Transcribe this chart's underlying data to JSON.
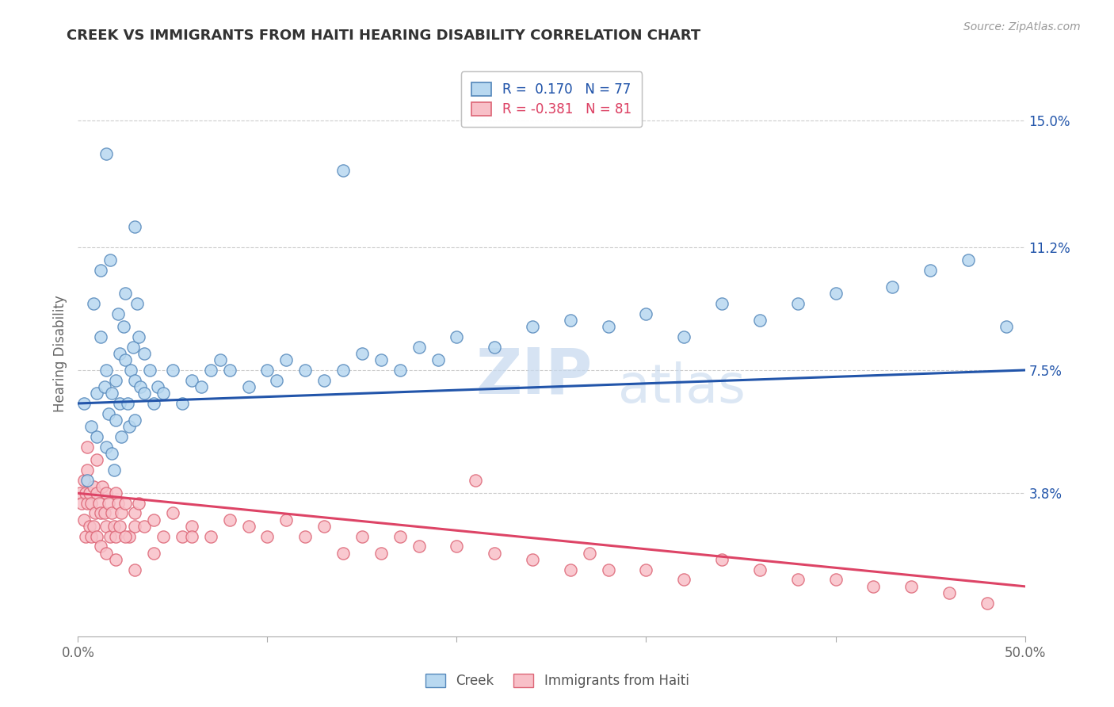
{
  "title": "CREEK VS IMMIGRANTS FROM HAITI HEARING DISABILITY CORRELATION CHART",
  "source": "Source: ZipAtlas.com",
  "ylabel": "Hearing Disability",
  "xlim": [
    0.0,
    50.0
  ],
  "ylim": [
    -0.5,
    16.5
  ],
  "xticks": [
    0.0,
    10.0,
    20.0,
    30.0,
    40.0,
    50.0
  ],
  "xticklabels": [
    "0.0%",
    "",
    "",
    "",
    "",
    "50.0%"
  ],
  "yticks_right": [
    3.8,
    7.5,
    11.2,
    15.0
  ],
  "ytick_labels_right": [
    "3.8%",
    "7.5%",
    "11.2%",
    "15.0%"
  ],
  "creek_color": "#b8d8f0",
  "creek_edge_color": "#5588bb",
  "haiti_color": "#f8c0c8",
  "haiti_edge_color": "#dd6677",
  "creek_line_color": "#2255aa",
  "haiti_line_color": "#dd4466",
  "creek_R": 0.17,
  "creek_N": 77,
  "haiti_R": -0.381,
  "haiti_N": 81,
  "watermark_zip": "ZIP",
  "watermark_atlas": "atlas",
  "grid_color": "#cccccc",
  "background_color": "#ffffff",
  "creek_scatter_x": [
    0.3,
    0.5,
    0.7,
    0.8,
    1.0,
    1.0,
    1.2,
    1.2,
    1.4,
    1.5,
    1.5,
    1.6,
    1.7,
    1.8,
    1.8,
    1.9,
    2.0,
    2.0,
    2.1,
    2.2,
    2.2,
    2.3,
    2.4,
    2.5,
    2.5,
    2.6,
    2.7,
    2.8,
    2.9,
    3.0,
    3.0,
    3.1,
    3.2,
    3.3,
    3.5,
    3.5,
    3.8,
    4.0,
    4.2,
    4.5,
    5.0,
    5.5,
    6.0,
    6.5,
    7.0,
    7.5,
    8.0,
    9.0,
    10.0,
    10.5,
    11.0,
    12.0,
    13.0,
    14.0,
    15.0,
    16.0,
    17.0,
    18.0,
    19.0,
    20.0,
    22.0,
    24.0,
    26.0,
    28.0,
    30.0,
    32.0,
    34.0,
    36.0,
    38.0,
    40.0,
    43.0,
    45.0,
    47.0,
    49.0,
    14.0,
    3.0,
    1.5
  ],
  "creek_scatter_y": [
    6.5,
    4.2,
    5.8,
    9.5,
    5.5,
    6.8,
    8.5,
    10.5,
    7.0,
    5.2,
    7.5,
    6.2,
    10.8,
    6.8,
    5.0,
    4.5,
    7.2,
    6.0,
    9.2,
    8.0,
    6.5,
    5.5,
    8.8,
    7.8,
    9.8,
    6.5,
    5.8,
    7.5,
    8.2,
    6.0,
    7.2,
    9.5,
    8.5,
    7.0,
    6.8,
    8.0,
    7.5,
    6.5,
    7.0,
    6.8,
    7.5,
    6.5,
    7.2,
    7.0,
    7.5,
    7.8,
    7.5,
    7.0,
    7.5,
    7.2,
    7.8,
    7.5,
    7.2,
    7.5,
    8.0,
    7.8,
    7.5,
    8.2,
    7.8,
    8.5,
    8.2,
    8.8,
    9.0,
    8.8,
    9.2,
    8.5,
    9.5,
    9.0,
    9.5,
    9.8,
    10.0,
    10.5,
    10.8,
    8.8,
    13.5,
    11.8,
    14.0
  ],
  "haiti_scatter_x": [
    0.1,
    0.2,
    0.3,
    0.3,
    0.4,
    0.4,
    0.5,
    0.5,
    0.6,
    0.6,
    0.7,
    0.7,
    0.8,
    0.8,
    0.9,
    1.0,
    1.0,
    1.1,
    1.2,
    1.2,
    1.3,
    1.4,
    1.5,
    1.5,
    1.6,
    1.7,
    1.8,
    1.9,
    2.0,
    2.0,
    2.1,
    2.2,
    2.3,
    2.5,
    2.7,
    3.0,
    3.0,
    3.2,
    3.5,
    4.0,
    4.5,
    5.0,
    5.5,
    6.0,
    7.0,
    8.0,
    9.0,
    10.0,
    11.0,
    12.0,
    13.0,
    14.0,
    15.0,
    16.0,
    17.0,
    18.0,
    20.0,
    22.0,
    24.0,
    26.0,
    27.0,
    28.0,
    30.0,
    32.0,
    34.0,
    36.0,
    38.0,
    40.0,
    42.0,
    44.0,
    46.0,
    48.0,
    0.5,
    1.0,
    1.5,
    2.0,
    2.5,
    3.0,
    4.0,
    6.0,
    21.0
  ],
  "haiti_scatter_y": [
    3.8,
    3.5,
    4.2,
    3.0,
    3.8,
    2.5,
    3.5,
    4.5,
    3.8,
    2.8,
    3.5,
    2.5,
    4.0,
    2.8,
    3.2,
    3.8,
    2.5,
    3.5,
    3.2,
    2.2,
    4.0,
    3.2,
    3.8,
    2.8,
    3.5,
    2.5,
    3.2,
    2.8,
    3.8,
    2.5,
    3.5,
    2.8,
    3.2,
    3.5,
    2.5,
    3.2,
    2.8,
    3.5,
    2.8,
    3.0,
    2.5,
    3.2,
    2.5,
    2.8,
    2.5,
    3.0,
    2.8,
    2.5,
    3.0,
    2.5,
    2.8,
    2.0,
    2.5,
    2.0,
    2.5,
    2.2,
    2.2,
    2.0,
    1.8,
    1.5,
    2.0,
    1.5,
    1.5,
    1.2,
    1.8,
    1.5,
    1.2,
    1.2,
    1.0,
    1.0,
    0.8,
    0.5,
    5.2,
    4.8,
    2.0,
    1.8,
    2.5,
    1.5,
    2.0,
    2.5,
    4.2
  ]
}
